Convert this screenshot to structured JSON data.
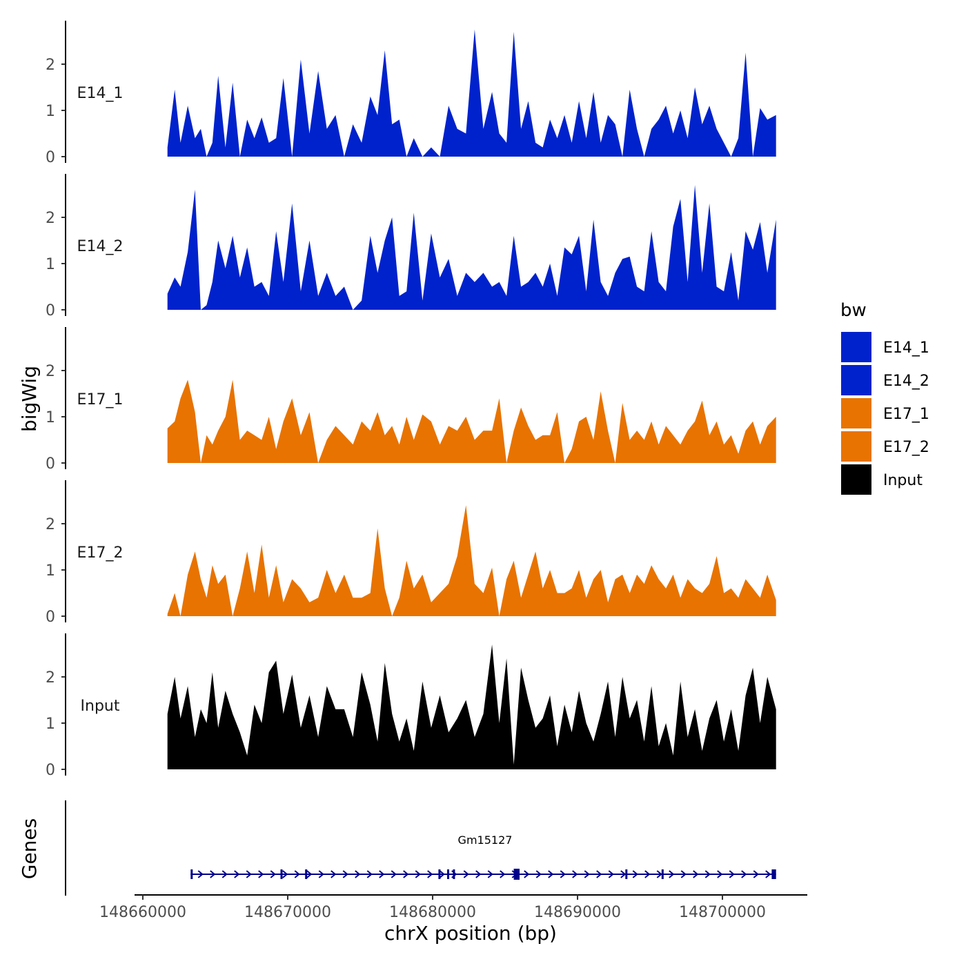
{
  "chart_data": {
    "type": "area",
    "title": "",
    "xlabel": "chrX position (bp)",
    "ylabel": "bigWig",
    "xlim": [
      148659000,
      148706000
    ],
    "ylim": [
      0,
      2.95
    ],
    "x_ticks": [
      148660000,
      148670000,
      148680000,
      148690000,
      148700000
    ],
    "x_tick_labels": [
      "148660000",
      "148670000",
      "148680000",
      "148690000",
      "148700000"
    ],
    "y_ticks": [
      0,
      1,
      2
    ],
    "y_tick_labels": [
      "0",
      "1",
      "2"
    ],
    "grid": false,
    "legend": {
      "title": "bw",
      "position": "right",
      "entries": [
        {
          "name": "E14_1",
          "color": "#0022CC"
        },
        {
          "name": "E14_2",
          "color": "#0022CC"
        },
        {
          "name": "E17_1",
          "color": "#E87300"
        },
        {
          "name": "E17_2",
          "color": "#E87300"
        },
        {
          "name": "Input",
          "color": "#000000"
        }
      ]
    },
    "series": [
      {
        "name": "E14_1",
        "color": "#0022CC",
        "x": [
          148661700,
          148662200,
          148662600,
          148663100,
          148663600,
          148664000,
          148664400,
          148664800,
          148665200,
          148665700,
          148666200,
          148666700,
          148667200,
          148667700,
          148668200,
          148668700,
          148669200,
          148669700,
          148670300,
          148670900,
          148671500,
          148672100,
          148672700,
          148673300,
          148673900,
          148674500,
          148675100,
          148675700,
          148676200,
          148676700,
          148677200,
          148677700,
          148678200,
          148678700,
          148679300,
          148679900,
          148680500,
          148681100,
          148681700,
          148682300,
          148682900,
          148683500,
          148684100,
          148684600,
          148685100,
          148685600,
          148686100,
          148686600,
          148687100,
          148687600,
          148688100,
          148688600,
          148689100,
          148689600,
          148690100,
          148690600,
          148691100,
          148691600,
          148692100,
          148692600,
          148693100,
          148693600,
          148694100,
          148694600,
          148695100,
          148695600,
          148696100,
          148696600,
          148697100,
          148697600,
          148698100,
          148698600,
          148699100,
          148699600,
          148700100,
          148700600,
          148701100,
          148701600,
          148702100,
          148702600,
          148703100,
          148703700
        ],
        "values": [
          0.2,
          1.45,
          0.3,
          1.1,
          0.4,
          0.6,
          0.0,
          0.3,
          1.75,
          0.2,
          1.6,
          0.0,
          0.8,
          0.4,
          0.85,
          0.3,
          0.4,
          1.7,
          0.0,
          2.1,
          0.5,
          1.85,
          0.6,
          0.9,
          0.0,
          0.7,
          0.3,
          1.3,
          0.9,
          2.3,
          0.7,
          0.8,
          0.0,
          0.4,
          0.0,
          0.2,
          0.0,
          1.1,
          0.6,
          0.5,
          2.75,
          0.6,
          1.4,
          0.5,
          0.3,
          2.7,
          0.6,
          1.2,
          0.3,
          0.2,
          0.8,
          0.4,
          0.9,
          0.3,
          1.2,
          0.4,
          1.4,
          0.3,
          0.9,
          0.7,
          0.0,
          1.45,
          0.6,
          0.0,
          0.6,
          0.8,
          1.1,
          0.5,
          1.0,
          0.4,
          1.5,
          0.7,
          1.1,
          0.6,
          0.3,
          0.0,
          0.4,
          2.25,
          0.0,
          1.05,
          0.8,
          0.9
        ]
      },
      {
        "name": "E14_2",
        "color": "#0022CC",
        "x": [
          148661700,
          148662200,
          148662600,
          148663100,
          148663600,
          148664000,
          148664400,
          148664800,
          148665200,
          148665700,
          148666200,
          148666700,
          148667200,
          148667700,
          148668200,
          148668700,
          148669200,
          148669700,
          148670300,
          148670900,
          148671500,
          148672100,
          148672700,
          148673300,
          148673900,
          148674500,
          148675100,
          148675700,
          148676200,
          148676700,
          148677200,
          148677700,
          148678200,
          148678700,
          148679300,
          148679900,
          148680500,
          148681100,
          148681700,
          148682300,
          148682900,
          148683500,
          148684100,
          148684600,
          148685100,
          148685600,
          148686100,
          148686600,
          148687100,
          148687600,
          148688100,
          148688600,
          148689100,
          148689600,
          148690100,
          148690600,
          148691100,
          148691600,
          148692100,
          148692600,
          148693100,
          148693600,
          148694100,
          148694600,
          148695100,
          148695600,
          148696100,
          148696600,
          148697100,
          148697600,
          148698100,
          148698600,
          148699100,
          148699600,
          148700100,
          148700600,
          148701100,
          148701600,
          148702100,
          148702600,
          148703100,
          148703700
        ],
        "values": [
          0.35,
          0.7,
          0.5,
          1.25,
          2.6,
          0.0,
          0.1,
          0.6,
          1.5,
          0.9,
          1.6,
          0.7,
          1.35,
          0.5,
          0.6,
          0.3,
          1.7,
          0.6,
          2.3,
          0.4,
          1.5,
          0.3,
          0.8,
          0.3,
          0.5,
          0.0,
          0.2,
          1.6,
          0.8,
          1.5,
          2.0,
          0.3,
          0.4,
          2.1,
          0.2,
          1.65,
          0.7,
          1.1,
          0.3,
          0.8,
          0.6,
          0.8,
          0.5,
          0.6,
          0.3,
          1.6,
          0.5,
          0.6,
          0.8,
          0.5,
          1.0,
          0.3,
          1.35,
          1.2,
          1.6,
          0.4,
          1.95,
          0.6,
          0.3,
          0.8,
          1.1,
          1.15,
          0.5,
          0.4,
          1.7,
          0.6,
          0.4,
          1.8,
          2.4,
          0.6,
          2.7,
          0.8,
          2.3,
          0.5,
          0.4,
          1.25,
          0.2,
          1.7,
          1.3,
          1.9,
          0.8,
          1.95
        ]
      },
      {
        "name": "E17_1",
        "color": "#E87300",
        "x": [
          148661700,
          148662200,
          148662600,
          148663100,
          148663600,
          148664000,
          148664400,
          148664800,
          148665200,
          148665700,
          148666200,
          148666700,
          148667200,
          148667700,
          148668200,
          148668700,
          148669200,
          148669700,
          148670300,
          148670900,
          148671500,
          148672100,
          148672700,
          148673300,
          148673900,
          148674500,
          148675100,
          148675700,
          148676200,
          148676700,
          148677200,
          148677700,
          148678200,
          148678700,
          148679300,
          148679900,
          148680500,
          148681100,
          148681700,
          148682300,
          148682900,
          148683500,
          148684100,
          148684600,
          148685100,
          148685600,
          148686100,
          148686600,
          148687100,
          148687600,
          148688100,
          148688600,
          148689100,
          148689600,
          148690100,
          148690600,
          148691100,
          148691600,
          148692100,
          148692600,
          148693100,
          148693600,
          148694100,
          148694600,
          148695100,
          148695600,
          148696100,
          148696600,
          148697100,
          148697600,
          148698100,
          148698600,
          148699100,
          148699600,
          148700100,
          148700600,
          148701100,
          148701600,
          148702100,
          148702600,
          148703100,
          148703700
        ],
        "values": [
          0.75,
          0.9,
          1.4,
          1.8,
          1.1,
          0.0,
          0.6,
          0.4,
          0.7,
          1.0,
          1.8,
          0.5,
          0.7,
          0.6,
          0.5,
          1.0,
          0.3,
          0.9,
          1.4,
          0.6,
          1.1,
          0.0,
          0.5,
          0.8,
          0.6,
          0.4,
          0.9,
          0.7,
          1.1,
          0.6,
          0.8,
          0.4,
          1.0,
          0.5,
          1.05,
          0.9,
          0.4,
          0.8,
          0.7,
          1.0,
          0.5,
          0.7,
          0.7,
          1.4,
          0.0,
          0.7,
          1.2,
          0.8,
          0.5,
          0.6,
          0.6,
          1.1,
          0.0,
          0.3,
          0.9,
          1.0,
          0.5,
          1.55,
          0.7,
          0.0,
          1.3,
          0.5,
          0.7,
          0.5,
          0.9,
          0.4,
          0.8,
          0.6,
          0.4,
          0.7,
          0.9,
          1.35,
          0.6,
          0.9,
          0.4,
          0.6,
          0.2,
          0.7,
          0.9,
          0.4,
          0.8,
          1.0
        ]
      },
      {
        "name": "E17_2",
        "color": "#E87300",
        "x": [
          148661700,
          148662200,
          148662600,
          148663100,
          148663600,
          148664000,
          148664400,
          148664800,
          148665200,
          148665700,
          148666200,
          148666700,
          148667200,
          148667700,
          148668200,
          148668700,
          148669200,
          148669700,
          148670300,
          148670900,
          148671500,
          148672100,
          148672700,
          148673300,
          148673900,
          148674500,
          148675100,
          148675700,
          148676200,
          148676700,
          148677200,
          148677700,
          148678200,
          148678700,
          148679300,
          148679900,
          148680500,
          148681100,
          148681700,
          148682300,
          148682900,
          148683500,
          148684100,
          148684600,
          148685100,
          148685600,
          148686100,
          148686600,
          148687100,
          148687600,
          148688100,
          148688600,
          148689100,
          148689600,
          148690100,
          148690600,
          148691100,
          148691600,
          148692100,
          148692600,
          148693100,
          148693600,
          148694100,
          148694600,
          148695100,
          148695600,
          148696100,
          148696600,
          148697100,
          148697600,
          148698100,
          148698600,
          148699100,
          148699600,
          148700100,
          148700600,
          148701100,
          148701600,
          148702100,
          148702600,
          148703100,
          148703700
        ],
        "values": [
          0.05,
          0.5,
          0.0,
          0.9,
          1.4,
          0.8,
          0.4,
          1.1,
          0.7,
          0.9,
          0.0,
          0.6,
          1.4,
          0.5,
          1.55,
          0.4,
          1.1,
          0.3,
          0.8,
          0.6,
          0.3,
          0.4,
          1.0,
          0.5,
          0.9,
          0.4,
          0.4,
          0.5,
          1.9,
          0.6,
          0.0,
          0.4,
          1.2,
          0.6,
          0.9,
          0.3,
          0.5,
          0.7,
          1.3,
          2.4,
          0.7,
          0.5,
          1.05,
          0.0,
          0.8,
          1.2,
          0.4,
          0.9,
          1.4,
          0.6,
          1.0,
          0.5,
          0.5,
          0.6,
          1.0,
          0.4,
          0.8,
          1.0,
          0.3,
          0.8,
          0.9,
          0.5,
          0.9,
          0.7,
          1.1,
          0.8,
          0.6,
          0.9,
          0.4,
          0.8,
          0.6,
          0.5,
          0.7,
          1.3,
          0.5,
          0.6,
          0.4,
          0.8,
          0.6,
          0.4,
          0.9,
          0.35
        ]
      },
      {
        "name": "Input",
        "color": "#000000",
        "x": [
          148661700,
          148662200,
          148662600,
          148663100,
          148663600,
          148664000,
          148664400,
          148664800,
          148665200,
          148665700,
          148666200,
          148666700,
          148667200,
          148667700,
          148668200,
          148668700,
          148669200,
          148669700,
          148670300,
          148670900,
          148671500,
          148672100,
          148672700,
          148673300,
          148673900,
          148674500,
          148675100,
          148675700,
          148676200,
          148676700,
          148677200,
          148677700,
          148678200,
          148678700,
          148679300,
          148679900,
          148680500,
          148681100,
          148681700,
          148682300,
          148682900,
          148683500,
          148684100,
          148684600,
          148685100,
          148685600,
          148686100,
          148686600,
          148687100,
          148687600,
          148688100,
          148688600,
          148689100,
          148689600,
          148690100,
          148690600,
          148691100,
          148691600,
          148692100,
          148692600,
          148693100,
          148693600,
          148694100,
          148694600,
          148695100,
          148695600,
          148696100,
          148696600,
          148697100,
          148697600,
          148698100,
          148698600,
          148699100,
          148699600,
          148700100,
          148700600,
          148701100,
          148701600,
          148702100,
          148702600,
          148703100,
          148703700
        ],
        "values": [
          1.2,
          2.0,
          1.1,
          1.8,
          0.7,
          1.3,
          1.0,
          2.1,
          0.9,
          1.7,
          1.2,
          0.8,
          0.3,
          1.4,
          1.0,
          2.1,
          2.35,
          1.2,
          2.05,
          0.9,
          1.6,
          0.7,
          1.8,
          1.3,
          1.3,
          0.7,
          2.1,
          1.4,
          0.6,
          2.3,
          1.2,
          0.6,
          1.1,
          0.4,
          1.9,
          0.9,
          1.6,
          0.8,
          1.1,
          1.5,
          0.7,
          1.2,
          2.7,
          1.0,
          2.4,
          0.1,
          2.2,
          1.5,
          0.9,
          1.1,
          1.6,
          0.5,
          1.4,
          0.8,
          1.7,
          1.0,
          0.6,
          1.2,
          1.9,
          0.7,
          2.0,
          1.1,
          1.5,
          0.6,
          1.8,
          0.5,
          1.0,
          0.3,
          1.9,
          0.7,
          1.3,
          0.4,
          1.1,
          1.5,
          0.6,
          1.3,
          0.4,
          1.6,
          2.2,
          1.0,
          2.0,
          1.3
        ]
      }
    ],
    "gene_track": {
      "label": "Genes",
      "gene_name": "Gm15127",
      "start": 148663300,
      "end": 148703700,
      "strand": "+",
      "color": "#00008B",
      "exons": [
        [
          148663300,
          148663400
        ],
        [
          148669500,
          148669600
        ],
        [
          148671200,
          148671300
        ],
        [
          148680400,
          148680500
        ],
        [
          148681000,
          148681100
        ],
        [
          148681400,
          148681500
        ],
        [
          148685600,
          148686000
        ],
        [
          148693300,
          148693400
        ],
        [
          148695800,
          148695900
        ],
        [
          148703400,
          148703700
        ]
      ]
    }
  }
}
